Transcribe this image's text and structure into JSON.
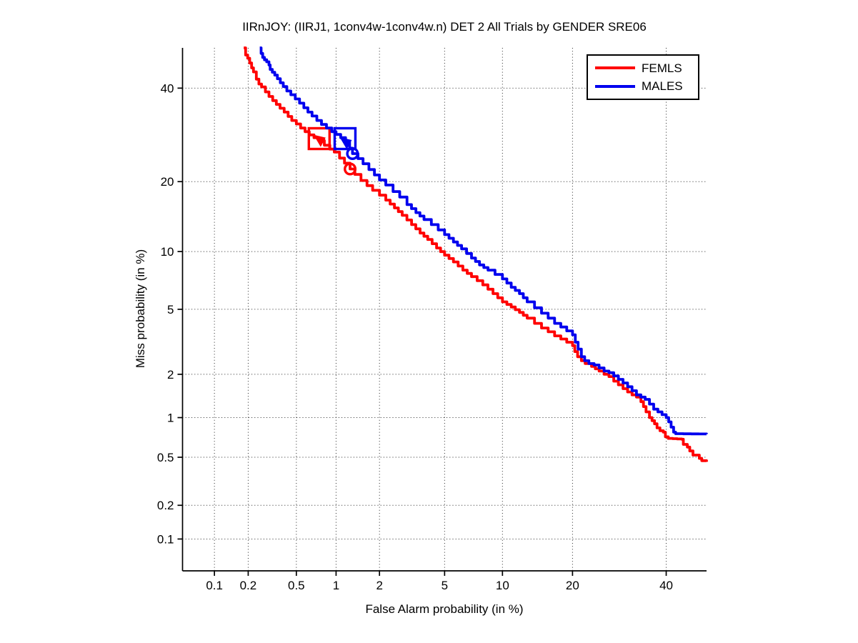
{
  "chart_data": {
    "type": "line",
    "subtype": "DET-curve",
    "title": "IIRnJOY: (IIRJ1, 1conv4w-1conv4w.n) DET 2 All Trials by GENDER SRE06",
    "xlabel": "False Alarm probability (in %)",
    "ylabel": "Miss probability (in %)",
    "scale": "normal-deviate (probit) on both axes",
    "grid": "dotted, on, at every labeled tick",
    "legend_position": "top-right inside plot",
    "axis_limits_pct": {
      "x": [
        0.05,
        50
      ],
      "y": [
        0.05,
        50
      ]
    },
    "tick_values_pct": [
      0.1,
      0.2,
      0.5,
      1,
      2,
      5,
      10,
      20,
      40
    ],
    "tick_labels": [
      "0.1",
      "0.2",
      "0.5",
      "1",
      "2",
      "5",
      "10",
      "20",
      "40"
    ],
    "series": [
      {
        "name": "FEMLS",
        "color": "#ff0000",
        "operating_point_box_fa_miss_pct": [
          0.75,
          28.4
        ],
        "arrow_marker_fa_miss_pct": [
          0.76,
          28.0
        ],
        "circle_marker_fa_miss_pct": [
          1.26,
          22.3
        ],
        "points_fa_miss_pct": [
          [
            0.183,
            50
          ],
          [
            0.19,
            48.2
          ],
          [
            0.198,
            47.4
          ],
          [
            0.206,
            46.2
          ],
          [
            0.214,
            45.0
          ],
          [
            0.222,
            44.0
          ],
          [
            0.235,
            42.2
          ],
          [
            0.247,
            41.0
          ],
          [
            0.26,
            40.3
          ],
          [
            0.28,
            39.1
          ],
          [
            0.3,
            38.0
          ],
          [
            0.322,
            37.0
          ],
          [
            0.345,
            36.1
          ],
          [
            0.37,
            35.2
          ],
          [
            0.4,
            34.3
          ],
          [
            0.43,
            33.3
          ],
          [
            0.46,
            32.4
          ],
          [
            0.5,
            31.6
          ],
          [
            0.54,
            30.7
          ],
          [
            0.585,
            29.9
          ],
          [
            0.63,
            29.2
          ],
          [
            0.685,
            28.6
          ],
          [
            0.75,
            28.0
          ],
          [
            0.82,
            27.0
          ],
          [
            0.9,
            26.2
          ],
          [
            0.97,
            25.6
          ],
          [
            1.06,
            24.4
          ],
          [
            1.15,
            23.4
          ],
          [
            1.26,
            22.3
          ],
          [
            1.36,
            21.3
          ],
          [
            1.5,
            20.2
          ],
          [
            1.65,
            19.3
          ],
          [
            1.8,
            18.5
          ],
          [
            2.0,
            17.7
          ],
          [
            2.2,
            16.9
          ],
          [
            2.5,
            15.7
          ],
          [
            2.8,
            14.6
          ],
          [
            3.2,
            13.3
          ],
          [
            3.6,
            12.2
          ],
          [
            4.0,
            11.4
          ],
          [
            4.5,
            10.4
          ],
          [
            5.0,
            9.6
          ],
          [
            5.6,
            8.9
          ],
          [
            6.3,
            8.1
          ],
          [
            7.0,
            7.5
          ],
          [
            8.0,
            6.8
          ],
          [
            9.0,
            6.1
          ],
          [
            10.0,
            5.5
          ],
          [
            11,
            5.15
          ],
          [
            12,
            4.8
          ],
          [
            13,
            4.45
          ],
          [
            14,
            4.15
          ],
          [
            15,
            3.9
          ],
          [
            16,
            3.7
          ],
          [
            17,
            3.5
          ],
          [
            18,
            3.35
          ],
          [
            19,
            3.2
          ],
          [
            20,
            3.05
          ],
          [
            20.4,
            2.8
          ],
          [
            20.9,
            2.6
          ],
          [
            21.6,
            2.45
          ],
          [
            22.3,
            2.35
          ],
          [
            23.5,
            2.25
          ],
          [
            25,
            2.1
          ],
          [
            26,
            2.0
          ],
          [
            27,
            1.93
          ],
          [
            28,
            1.8
          ],
          [
            29,
            1.7
          ],
          [
            30,
            1.6
          ],
          [
            31,
            1.52
          ],
          [
            32,
            1.45
          ],
          [
            33,
            1.4
          ],
          [
            34,
            1.3
          ],
          [
            34.6,
            1.2
          ],
          [
            35.2,
            1.1
          ],
          [
            36,
            1.0
          ],
          [
            36.6,
            0.95
          ],
          [
            37.2,
            0.9
          ],
          [
            37.8,
            0.84
          ],
          [
            38.5,
            0.8
          ],
          [
            39.3,
            0.78
          ],
          [
            39.8,
            0.72
          ],
          [
            40.5,
            0.7
          ],
          [
            43.8,
            0.69
          ],
          [
            44.2,
            0.63
          ],
          [
            45.2,
            0.6
          ],
          [
            45.8,
            0.56
          ],
          [
            46.6,
            0.52
          ],
          [
            47.8,
            0.52
          ],
          [
            48.2,
            0.49
          ],
          [
            48.8,
            0.47
          ],
          [
            50,
            0.46
          ]
        ]
      },
      {
        "name": "MALES",
        "color": "#0000ee",
        "operating_point_box_fa_miss_pct": [
          1.16,
          28.4
        ],
        "arrow_marker_fa_miss_pct": [
          1.18,
          27.5
        ],
        "circle_marker_fa_miss_pct": [
          1.31,
          25.3
        ],
        "points_fa_miss_pct": [
          [
            0.251,
            50
          ],
          [
            0.258,
            48.6
          ],
          [
            0.266,
            47.6
          ],
          [
            0.275,
            47.0
          ],
          [
            0.287,
            46.5
          ],
          [
            0.3,
            45.7
          ],
          [
            0.307,
            44.6
          ],
          [
            0.32,
            43.9
          ],
          [
            0.335,
            43.2
          ],
          [
            0.352,
            42.3
          ],
          [
            0.372,
            41.3
          ],
          [
            0.393,
            40.4
          ],
          [
            0.42,
            39.3
          ],
          [
            0.452,
            38.4
          ],
          [
            0.49,
            37.4
          ],
          [
            0.53,
            36.4
          ],
          [
            0.572,
            35.3
          ],
          [
            0.615,
            34.3
          ],
          [
            0.662,
            33.4
          ],
          [
            0.72,
            32.4
          ],
          [
            0.78,
            31.5
          ],
          [
            0.85,
            30.7
          ],
          [
            0.93,
            29.9
          ],
          [
            1.0,
            29.3
          ],
          [
            1.08,
            28.6
          ],
          [
            1.17,
            27.7
          ],
          [
            1.25,
            26.4
          ],
          [
            1.31,
            25.3
          ],
          [
            1.43,
            24.3
          ],
          [
            1.55,
            23.3
          ],
          [
            1.7,
            22.2
          ],
          [
            1.85,
            21.2
          ],
          [
            2.0,
            20.3
          ],
          [
            2.2,
            19.4
          ],
          [
            2.45,
            18.3
          ],
          [
            2.7,
            17.4
          ],
          [
            3.0,
            16.2
          ],
          [
            3.4,
            15.0
          ],
          [
            3.8,
            14.0
          ],
          [
            4.2,
            13.3
          ],
          [
            4.6,
            12.6
          ],
          [
            5.0,
            12.0
          ],
          [
            5.6,
            11.1
          ],
          [
            6.2,
            10.3
          ],
          [
            7.0,
            9.3
          ],
          [
            7.7,
            8.6
          ],
          [
            8.5,
            8.1
          ],
          [
            9.2,
            7.7
          ],
          [
            10,
            7.3
          ],
          [
            11,
            6.6
          ],
          [
            12,
            6.1
          ],
          [
            13,
            5.5
          ],
          [
            14,
            5.1
          ],
          [
            15,
            4.75
          ],
          [
            16,
            4.45
          ],
          [
            17,
            4.15
          ],
          [
            18,
            3.95
          ],
          [
            19,
            3.75
          ],
          [
            20,
            3.55
          ],
          [
            20.5,
            3.2
          ],
          [
            21,
            2.9
          ],
          [
            21.6,
            2.6
          ],
          [
            22.2,
            2.45
          ],
          [
            23,
            2.35
          ],
          [
            24,
            2.3
          ],
          [
            25,
            2.2
          ],
          [
            26,
            2.1
          ],
          [
            27,
            2.05
          ],
          [
            28,
            1.95
          ],
          [
            29,
            1.85
          ],
          [
            30,
            1.75
          ],
          [
            31,
            1.65
          ],
          [
            32,
            1.55
          ],
          [
            33,
            1.45
          ],
          [
            34,
            1.4
          ],
          [
            35,
            1.35
          ],
          [
            36,
            1.25
          ],
          [
            37,
            1.15
          ],
          [
            38,
            1.1
          ],
          [
            39,
            1.05
          ],
          [
            40,
            1.0
          ],
          [
            40.6,
            0.93
          ],
          [
            41.2,
            0.85
          ],
          [
            41.8,
            0.78
          ],
          [
            42.3,
            0.76
          ],
          [
            50,
            0.755
          ]
        ]
      }
    ]
  }
}
